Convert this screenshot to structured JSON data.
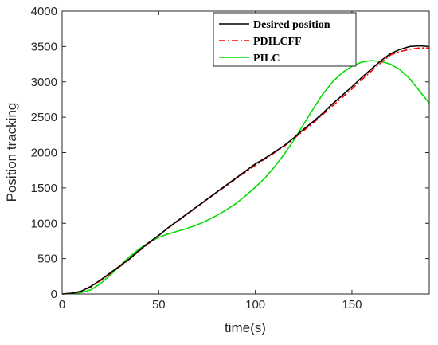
{
  "chart_data": {
    "type": "line",
    "xlabel": "time(s)",
    "ylabel": "Position tracking",
    "xlim": [
      0,
      190
    ],
    "ylim": [
      0,
      4000
    ],
    "xticks": [
      0,
      50,
      100,
      150
    ],
    "yticks": [
      0,
      500,
      1000,
      1500,
      2000,
      2500,
      3000,
      3500,
      4000
    ],
    "grid": false,
    "legend_position": "top-right",
    "series": [
      {
        "name": "Desired position",
        "color": "#000000",
        "dash": "solid",
        "x": [
          0,
          5,
          10,
          15,
          20,
          25,
          30,
          35,
          40,
          45,
          50,
          55,
          60,
          65,
          70,
          75,
          80,
          85,
          90,
          95,
          100,
          105,
          110,
          115,
          120,
          125,
          130,
          135,
          140,
          145,
          150,
          155,
          160,
          165,
          170,
          175,
          180,
          185,
          190
        ],
        "y": [
          0,
          10,
          40,
          110,
          200,
          300,
          400,
          500,
          620,
          730,
          830,
          940,
          1040,
          1140,
          1240,
          1340,
          1440,
          1540,
          1640,
          1740,
          1840,
          1920,
          2010,
          2100,
          2210,
          2330,
          2440,
          2560,
          2690,
          2810,
          2930,
          3060,
          3180,
          3300,
          3400,
          3460,
          3500,
          3510,
          3500
        ]
      },
      {
        "name": "PDILCFF",
        "color": "#ff0000",
        "dash": "dashdot",
        "x": [
          0,
          5,
          10,
          15,
          20,
          25,
          30,
          35,
          40,
          45,
          50,
          55,
          60,
          65,
          70,
          75,
          80,
          85,
          90,
          95,
          100,
          105,
          110,
          115,
          120,
          125,
          130,
          135,
          140,
          145,
          150,
          155,
          160,
          165,
          170,
          175,
          180,
          185,
          190
        ],
        "y": [
          0,
          8,
          35,
          100,
          190,
          290,
          390,
          495,
          610,
          720,
          825,
          935,
          1035,
          1135,
          1235,
          1335,
          1435,
          1530,
          1630,
          1725,
          1820,
          1910,
          2000,
          2090,
          2200,
          2310,
          2420,
          2540,
          2660,
          2780,
          2900,
          3030,
          3150,
          3270,
          3380,
          3430,
          3460,
          3480,
          3480
        ]
      },
      {
        "name": "PILC",
        "color": "#00dd00",
        "dash": "solid",
        "x": [
          0,
          5,
          10,
          15,
          20,
          25,
          30,
          35,
          40,
          45,
          50,
          55,
          60,
          65,
          70,
          75,
          80,
          85,
          90,
          95,
          100,
          105,
          110,
          115,
          120,
          125,
          130,
          135,
          140,
          145,
          150,
          155,
          160,
          165,
          170,
          175,
          180,
          185,
          190
        ],
        "y": [
          0,
          5,
          20,
          60,
          150,
          270,
          400,
          530,
          640,
          730,
          800,
          850,
          890,
          930,
          980,
          1040,
          1110,
          1190,
          1280,
          1390,
          1510,
          1640,
          1800,
          1980,
          2180,
          2400,
          2620,
          2830,
          3000,
          3130,
          3220,
          3280,
          3300,
          3290,
          3250,
          3170,
          3040,
          2870,
          2700
        ]
      }
    ]
  }
}
